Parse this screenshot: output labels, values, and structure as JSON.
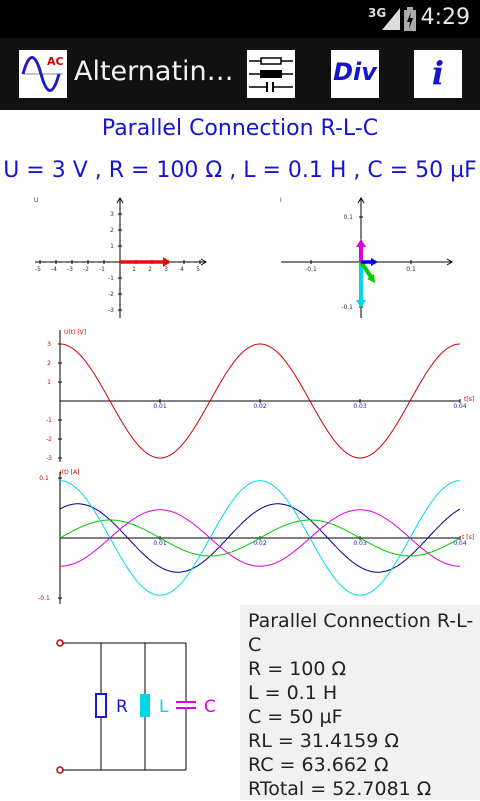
{
  "status_bar": {
    "network": "3G",
    "time": "4:29"
  },
  "app_bar": {
    "title": "Alternatin…",
    "logo_text": "AC",
    "div_button_label": "Div",
    "info_button_label": "i"
  },
  "main_title": "Parallel Connection R-L-C",
  "parameters": "U = 3 V , R = 100 Ω , L = 0.1 H , C = 50 µF",
  "phasor_u": {
    "label": "U",
    "x_ticks": [
      "-5",
      "-4",
      "-3",
      "-2",
      "-1",
      "1",
      "2",
      "3",
      "4",
      "5"
    ],
    "y_ticks": [
      "3",
      "2",
      "1",
      "-1",
      "-2",
      "-3"
    ]
  },
  "phasor_i": {
    "label": "I",
    "x_ticks": [
      "-0.1",
      "0.1"
    ],
    "y_ticks": [
      "0.1",
      "-0.1"
    ]
  },
  "voltage_plot": {
    "ylabel": "U(t) [V]",
    "xlabel": "t[s]",
    "y_ticks": [
      "3",
      "2",
      "1",
      "-1",
      "-2",
      "-3"
    ],
    "x_ticks": [
      "0.01",
      "0.02",
      "0.03",
      "0.04"
    ]
  },
  "current_plot": {
    "ylabel": "I(t) [A]",
    "xlabel": "t [s]",
    "y_ticks": [
      "0.1",
      "-0.1"
    ],
    "x_ticks": [
      "0.01",
      "0.02",
      "0.03",
      "0.04"
    ]
  },
  "circuit": {
    "r_label": "R",
    "l_label": "L",
    "c_label": "C"
  },
  "info": [
    "Parallel Connection R-L-",
    "C",
    "R = 100 Ω",
    "L = 0.1 H",
    "C = 50 µF",
    "RL = 31.4159 Ω",
    "RC = 63.662 Ω",
    "RTotal = 52.7081 Ω"
  ],
  "colors": {
    "title_blue": "#1515d0",
    "voltage": "#d00000",
    "current_total": "#00008b",
    "current_r": "#00cc00",
    "current_l": "#00d8e8",
    "current_c": "#dd00dd"
  },
  "chart_data": [
    {
      "type": "line",
      "ylabel": "U(t) [V]",
      "xlabel": "t[s]",
      "xlim": [
        0,
        0.04
      ],
      "ylim": [
        -3,
        3
      ],
      "series": [
        {
          "function": "u(t) = 3·cos(2π·50·t)",
          "amplitude": 3,
          "frequency_hz": 50,
          "phase_deg": 0
        }
      ]
    },
    {
      "type": "line",
      "ylabel": "I(t) [A]",
      "xlabel": "t [s]",
      "xlim": [
        0,
        0.04
      ],
      "ylim": [
        -0.1,
        0.1
      ],
      "series": [
        {
          "amplitude": 0.057,
          "frequency_hz": 50,
          "phase_deg": 58
        },
        {
          "amplitude": 0.03,
          "frequency_hz": 50,
          "phase_deg": 0
        },
        {
          "amplitude": 0.0955,
          "frequency_hz": 50,
          "phase_deg": 90
        },
        {
          "amplitude": 0.0471,
          "frequency_hz": 50,
          "phase_deg": -90
        }
      ]
    }
  ]
}
